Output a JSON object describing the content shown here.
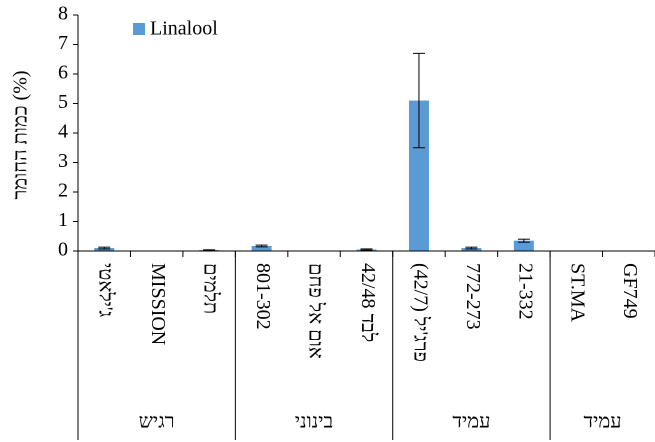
{
  "chart_data": {
    "type": "bar",
    "ylabel": "כמות החומר (%)",
    "groups": [
      {
        "name": "רגיש",
        "categories": [
          "ג'ילאטי",
          "MISSION",
          "תלמים"
        ]
      },
      {
        "name": "בינוני",
        "categories": [
          "801-302",
          "אום אל פחם",
          "לבד 42/48"
        ]
      },
      {
        "name": "עמיד",
        "categories": [
          "פרג'יל (42/7)",
          "772-273",
          "21-332"
        ]
      },
      {
        "name": "עמיד",
        "categories": [
          "ST.MA",
          "GF749"
        ]
      }
    ],
    "series": [
      {
        "name": "Linalool",
        "color": "#5b9bd5",
        "values": [
          0.1,
          0,
          0.03,
          0.17,
          0,
          0.05,
          5.1,
          0.1,
          0.35,
          0,
          0
        ],
        "errors": [
          0.03,
          0,
          0.01,
          0.03,
          0,
          0.02,
          1.6,
          0.03,
          0.05,
          0,
          0
        ]
      }
    ],
    "ylim": [
      0,
      8
    ],
    "yticks": [
      0,
      1,
      2,
      3,
      4,
      5,
      6,
      7,
      8
    ],
    "grid": false
  }
}
